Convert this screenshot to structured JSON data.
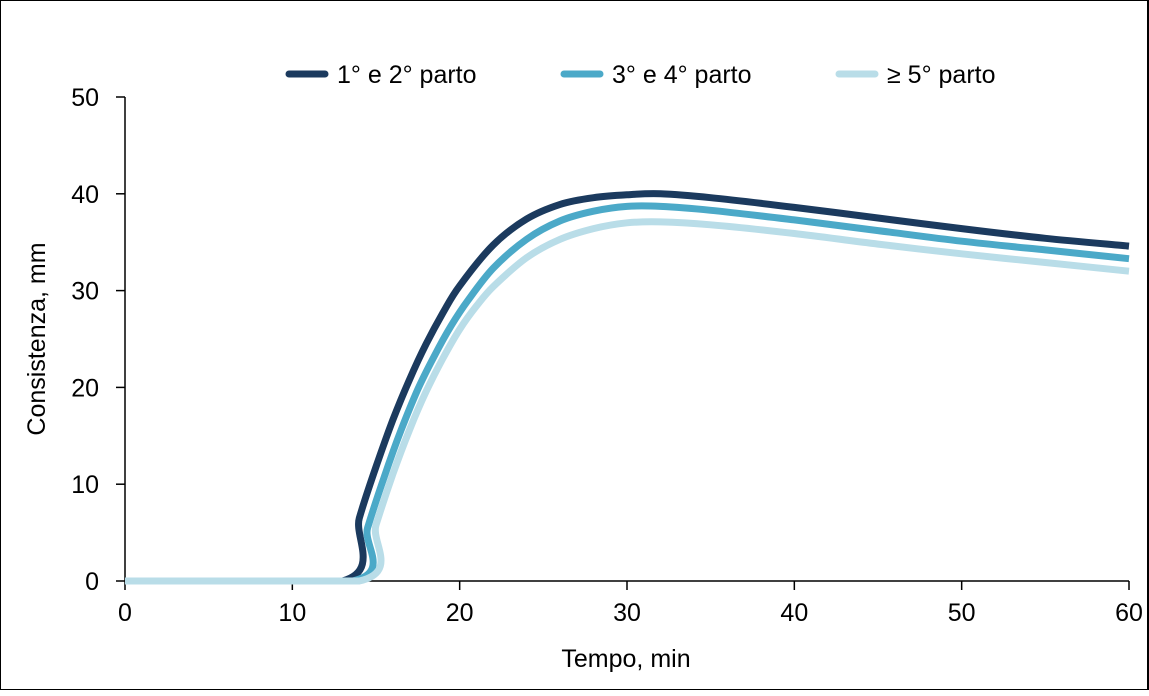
{
  "chart_data": {
    "type": "line",
    "title": "",
    "xlabel": "Tempo, min",
    "ylabel": "Consistenza, mm",
    "xlim": [
      0,
      60
    ],
    "ylim": [
      0,
      50
    ],
    "x_ticks": [
      "0",
      "10",
      "20",
      "30",
      "40",
      "50",
      "60"
    ],
    "y_ticks": [
      "0",
      "10",
      "20",
      "30",
      "40",
      "50"
    ],
    "grid": false,
    "legend_position": "top",
    "series": [
      {
        "name": "1° e 2° parto",
        "color": "#1b3a5e",
        "x": [
          0,
          13,
          14,
          15,
          16,
          17,
          18,
          19,
          20,
          22,
          24,
          26,
          28,
          30,
          32,
          35,
          40,
          45,
          50,
          55,
          60
        ],
        "y": [
          0,
          0,
          6.5,
          11.8,
          16.6,
          20.8,
          24.5,
          27.7,
          30.5,
          34.7,
          37.4,
          38.9,
          39.6,
          39.9,
          40.0,
          39.6,
          38.6,
          37.5,
          36.4,
          35.4,
          34.6
        ]
      },
      {
        "name": "3° e 4° parto",
        "color": "#4ba9c8",
        "x": [
          0,
          13.6,
          14.5,
          15.5,
          16.5,
          17.5,
          18.5,
          19.5,
          20.5,
          22,
          24,
          26,
          28,
          30,
          32,
          35,
          40,
          45,
          50,
          55,
          60
        ],
        "y": [
          0,
          0,
          5.5,
          10.8,
          15.6,
          19.8,
          23.3,
          26.4,
          29.0,
          32.3,
          35.3,
          37.2,
          38.2,
          38.7,
          38.7,
          38.3,
          37.3,
          36.2,
          35.1,
          34.2,
          33.3
        ]
      },
      {
        "name": "≥ 5° parto",
        "color": "#b9dde8",
        "x": [
          0,
          14,
          15,
          16,
          17,
          18,
          19,
          20,
          21,
          22,
          24,
          26,
          28,
          30,
          32,
          35,
          40,
          45,
          50,
          55,
          60
        ],
        "y": [
          0,
          0,
          5.8,
          11.0,
          15.6,
          19.6,
          23.0,
          26.0,
          28.4,
          30.4,
          33.4,
          35.3,
          36.4,
          37.0,
          37.1,
          36.8,
          35.9,
          34.8,
          33.8,
          32.9,
          32.0
        ]
      }
    ]
  }
}
